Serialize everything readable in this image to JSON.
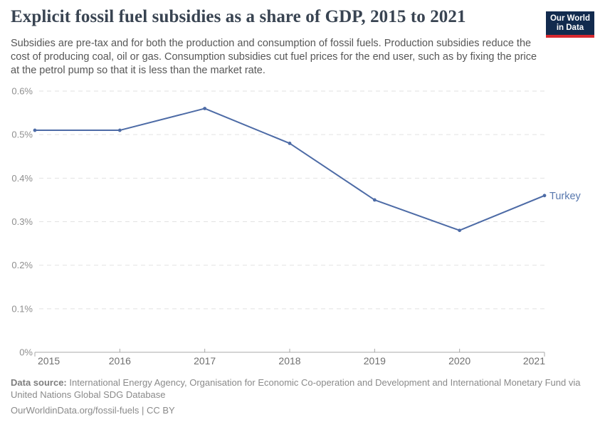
{
  "header": {
    "title": "Explicit fossil fuel subsidies as a share of GDP, 2015 to 2021",
    "subtitle": "Subsidies are pre-tax and for both the production and consumption of fossil fuels. Production subsidies reduce the cost of producing coal, oil or gas. Consumption subsidies cut fuel prices for the end user, such as by fixing the price at the petrol pump so that it is less than the market rate.",
    "logo": {
      "line1": "Our World",
      "line2": "in Data"
    }
  },
  "chart_data": {
    "type": "line",
    "title": "Explicit fossil fuel subsidies as a share of GDP, 2015 to 2021",
    "x": [
      2015,
      2016,
      2017,
      2018,
      2019,
      2020,
      2021
    ],
    "x_labels": [
      "2015",
      "2016",
      "2017",
      "2018",
      "2019",
      "2020",
      "2021"
    ],
    "series": [
      {
        "name": "Turkey",
        "values": [
          0.51,
          0.51,
          0.56,
          0.48,
          0.35,
          0.28,
          0.36
        ]
      }
    ],
    "ylim": [
      0,
      0.6
    ],
    "yticks": [
      0,
      0.1,
      0.2,
      0.3,
      0.4,
      0.5,
      0.6
    ],
    "ytick_labels": [
      "0%",
      "0.1%",
      "0.2%",
      "0.3%",
      "0.4%",
      "0.5%",
      "0.6%"
    ],
    "grid": true,
    "grid_style": "dashed",
    "legend_position": "end-of-line",
    "line_color": "#4d6ba6",
    "label_color": "#5878ae",
    "xlabel": "",
    "ylabel": ""
  },
  "footer": {
    "source_label": "Data source:",
    "source_text": "International Energy Agency, Organisation for Economic Co-operation and Development and International Monetary Fund via United Nations Global SDG Database",
    "note": "OurWorldinData.org/fossil-fuels | CC BY"
  }
}
